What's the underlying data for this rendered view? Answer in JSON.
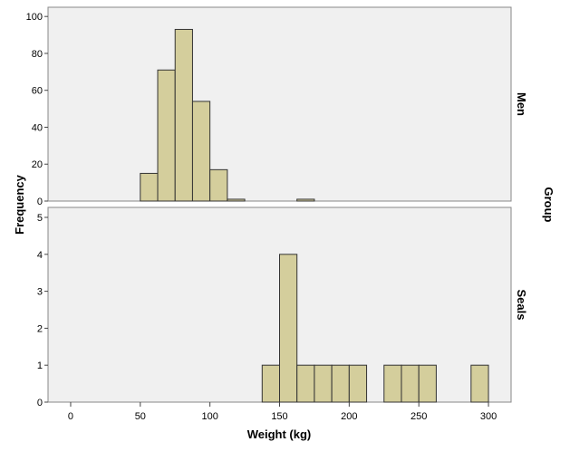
{
  "figure": {
    "xlabel": "Weight (kg)",
    "ylabel": "Frequency",
    "facet_label": "Group"
  },
  "chart_data": [
    {
      "type": "histogram",
      "panel_label": "Men",
      "color": "#d4ce9c",
      "bins": [
        50,
        62.5,
        75,
        87.5,
        100,
        112.5,
        125,
        137.5,
        150,
        162.5,
        175
      ],
      "values": [
        15,
        71,
        93,
        54,
        17,
        1,
        0,
        0,
        0,
        1
      ],
      "xlim": [
        -16.25,
        316.25
      ],
      "ylim": [
        0,
        105
      ],
      "yticks": [
        0,
        20,
        40,
        60,
        80,
        100
      ]
    },
    {
      "type": "histogram",
      "panel_label": "Seals",
      "color": "#d4ce9c",
      "bins": [
        137.5,
        150,
        162.5,
        175,
        187.5,
        200,
        212.5,
        225,
        237.5,
        250,
        262.5,
        275,
        287.5,
        300
      ],
      "values": [
        1,
        4,
        1,
        1,
        1,
        1,
        0,
        1,
        1,
        1,
        0,
        0,
        1
      ],
      "xlim": [
        -16.25,
        316.25
      ],
      "ylim": [
        0,
        5.27
      ],
      "yticks": [
        0,
        1,
        2,
        3,
        4,
        5
      ],
      "xticks": [
        0,
        50,
        100,
        150,
        200,
        250,
        300
      ]
    }
  ]
}
